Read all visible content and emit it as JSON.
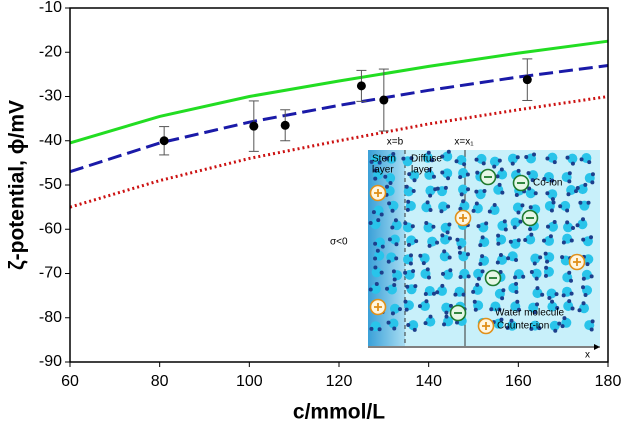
{
  "chart_data": {
    "type": "line",
    "xlabel": "c/mmol/L",
    "ylabel": "ζ-potential, ϕ/mV",
    "xlim": [
      60,
      180
    ],
    "ylim": [
      -90,
      -10
    ],
    "xticks": [
      60,
      80,
      100,
      120,
      140,
      160,
      180
    ],
    "yticks": [
      -90,
      -80,
      -70,
      -60,
      -50,
      -40,
      -30,
      -20,
      -10
    ],
    "x": [
      60,
      80,
      100,
      120,
      140,
      160,
      180
    ],
    "series": [
      {
        "color": "#22dd22",
        "style": "solid",
        "values": [
          -40.5,
          -34.5,
          -30,
          -26.5,
          -23.2,
          -20.2,
          -17.5
        ]
      },
      {
        "color": "#1a1aa8",
        "style": "dashed",
        "values": [
          -47,
          -40.5,
          -35.8,
          -32,
          -28.6,
          -25.6,
          -23
        ]
      },
      {
        "color": "#cc1111",
        "style": "dotted",
        "values": [
          -55,
          -49,
          -44,
          -40,
          -36.2,
          -33,
          -30
        ]
      }
    ],
    "points": {
      "x": [
        81,
        101,
        108,
        125,
        130,
        162
      ],
      "values": [
        -40,
        -36.7,
        -36.5,
        -27.6,
        -30.8,
        -26.2
      ],
      "errors": [
        3.2,
        5.7,
        3.5,
        3.5,
        7,
        4.7
      ],
      "color": "#000000"
    },
    "inset": {
      "stern": "Stern",
      "stern2": "layer",
      "diffuse": "Diffuse",
      "diffuse2": "layer",
      "xb": "x=b",
      "xx1": "x=x₁",
      "sigma": "σ<0",
      "coion": "Co-ion",
      "water": "Water molecule",
      "counterion": "Counter-ion",
      "xaxis": "x"
    }
  }
}
